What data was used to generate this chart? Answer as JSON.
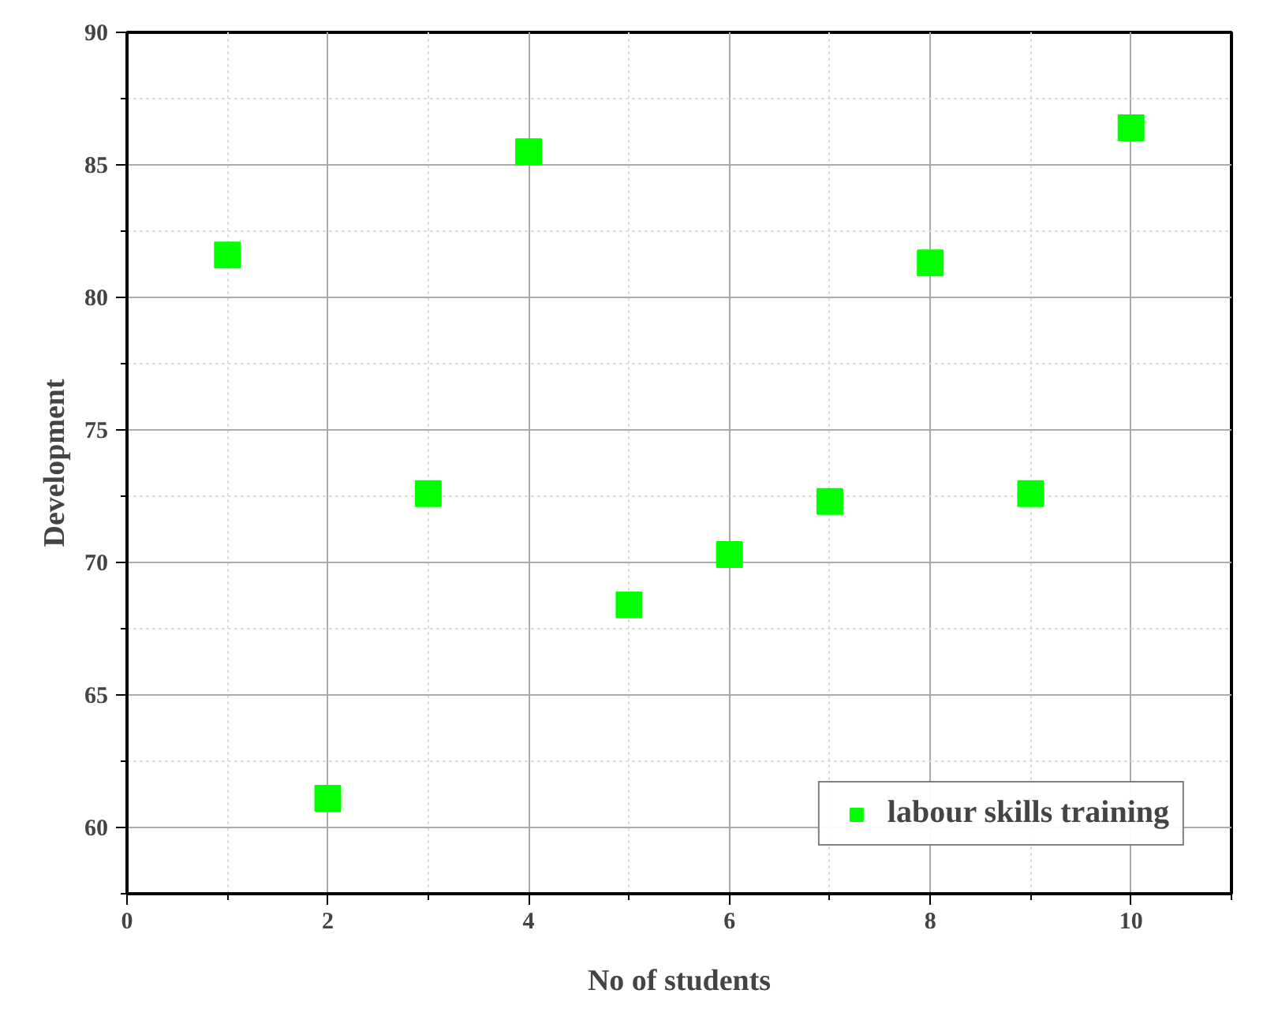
{
  "chart_data": {
    "type": "scatter",
    "xlabel": "No of students",
    "ylabel": "Development",
    "x": [
      1,
      2,
      3,
      4,
      5,
      6,
      7,
      8,
      9,
      10
    ],
    "series": [
      {
        "name": "labour skills training",
        "color": "#00ff00",
        "values": [
          81.6,
          61.1,
          72.6,
          85.5,
          68.4,
          70.3,
          72.3,
          81.3,
          72.6,
          86.4
        ]
      }
    ],
    "xlim": [
      0,
      11
    ],
    "ylim": [
      57.5,
      90
    ],
    "xticks": [
      0,
      2,
      4,
      6,
      8,
      10
    ],
    "yticks": [
      60,
      65,
      70,
      75,
      80,
      85,
      90
    ],
    "grid": true,
    "legend": "bottom right",
    "marker": "square"
  }
}
